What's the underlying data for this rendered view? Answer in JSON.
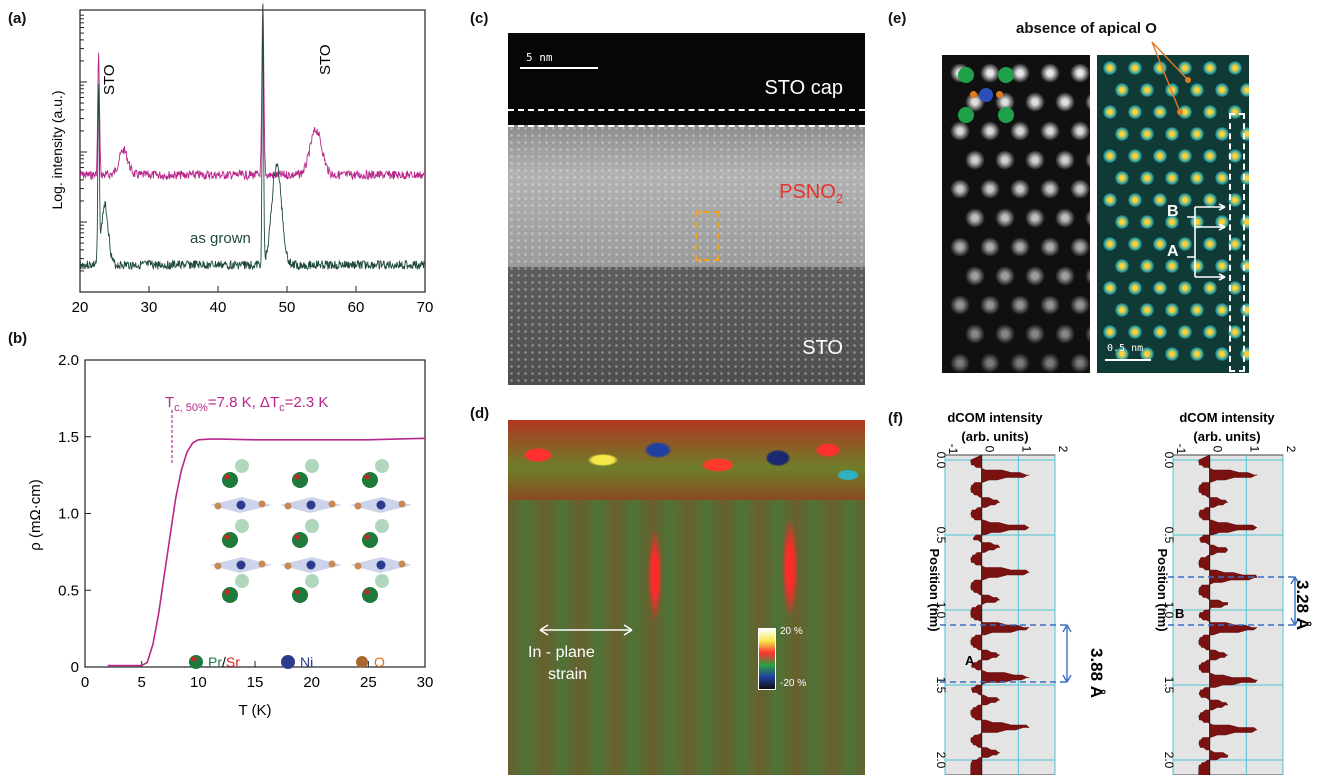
{
  "panel_labels": [
    "(a)",
    "(b)",
    "(c)",
    "(d)",
    "(e)",
    "(f)"
  ],
  "panel_a": {
    "ylabel": "Log. intensity (a.u.)",
    "xticks": [
      "20",
      "30",
      "40",
      "50",
      "60",
      "70"
    ],
    "sto_labels": [
      "STO",
      "STO"
    ],
    "as_grown_label": "as grown",
    "colors": {
      "treated": "#b8288c",
      "as_grown": "#1f4a3c"
    }
  },
  "panel_b": {
    "ylabel": "ρ (mΩ·cm)",
    "xlabel": "T (K)",
    "xticks": [
      "0",
      "5",
      "10",
      "15",
      "20",
      "25",
      "30"
    ],
    "yticks": [
      "0",
      "0.5",
      "1.0",
      "1.5",
      "2.0"
    ],
    "tc_annotation": "T_c, 50%=7.8 K, ΔT_c=2.3 K",
    "tc_main": "T",
    "tc_sub": "c, 50%",
    "tc_rest": "=7.8 K, ΔT",
    "tc_sub2": "c",
    "tc_end": "=2.3 K",
    "legend": {
      "pr": "Pr",
      "slash": "/",
      "sr": "Sr",
      "ni": "Ni",
      "o": "O"
    },
    "color": "#b8288c"
  },
  "panel_c": {
    "scalebar": "5 nm",
    "sto_cap": "STO cap",
    "film": "PSNO",
    "film_sub": "2",
    "substrate": "STO"
  },
  "panel_d": {
    "arrow_label_1": "In - plane",
    "arrow_label_2": "strain",
    "scale_max": "20 %",
    "scale_min": "-20 %"
  },
  "panel_e": {
    "title": "absence of apical O",
    "label_b": "B",
    "label_a": "A",
    "scalebar": "0.5 nm"
  },
  "panel_f": {
    "left": {
      "title_1": "dCOM intensity",
      "title_2": "(arb. units)",
      "xticks": [
        "-1",
        "0",
        "1",
        "2"
      ],
      "ylabel": "Position (nm)",
      "yticks": [
        "0.0",
        "0.5",
        "1.0",
        "1.5",
        "2.0"
      ],
      "label": "A",
      "distance": "3.88 Å"
    },
    "right": {
      "title_1": "dCOM intensity",
      "title_2": "(arb. units)",
      "xticks": [
        "-1",
        "0",
        "1",
        "2"
      ],
      "ylabel": "Position (nm)",
      "yticks": [
        "0.0",
        "0.5",
        "1.0",
        "1.5",
        "2.0"
      ],
      "label": "B",
      "distance": "3.28 Å"
    }
  },
  "chart_data": [
    {
      "type": "line",
      "panel": "(a)",
      "title": "",
      "xlabel": "",
      "ylabel": "Log. intensity (a.u.)",
      "xlim": [
        20,
        70
      ],
      "yscale": "log",
      "series": [
        {
          "name": "",
          "peaks_2theta": [
            22.7,
            26.3,
            46.5,
            54.2
          ]
        },
        {
          "name": "as grown",
          "peaks_2theta": [
            22.7,
            23.6,
            46.5,
            48.5
          ]
        }
      ],
      "annotations": [
        "STO",
        "STO"
      ]
    },
    {
      "type": "line",
      "panel": "(b)",
      "xlabel": "T (K)",
      "ylabel": "ρ (mΩ·cm)",
      "xlim": [
        0,
        30
      ],
      "ylim": [
        0,
        2.0
      ],
      "series": [
        {
          "name": "",
          "x": [
            2,
            5,
            5.5,
            6,
            6.5,
            7,
            7.5,
            8,
            8.5,
            9,
            9.5,
            10,
            11,
            12,
            15,
            20,
            25,
            30
          ],
          "y": [
            0.01,
            0.01,
            0.03,
            0.15,
            0.35,
            0.6,
            0.85,
            1.1,
            1.28,
            1.4,
            1.46,
            1.48,
            1.485,
            1.485,
            1.48,
            1.48,
            1.48,
            1.49
          ]
        }
      ],
      "annotations": [
        "T_c, 50%=7.8 K, ΔT_c=2.3 K"
      ]
    },
    {
      "type": "bar",
      "panel": "(f) left",
      "xlabel": "Position (nm)",
      "ylabel": "dCOM intensity (arb. units)",
      "xlim": [
        0,
        2.1
      ],
      "ylim": [
        -1,
        2
      ],
      "peak_positions_nm": [
        0.1,
        0.28,
        0.45,
        0.58,
        0.75,
        0.93,
        1.12,
        1.3,
        1.45,
        1.6,
        1.78,
        1.95
      ]
    },
    {
      "type": "bar",
      "panel": "(f) right",
      "xlabel": "Position (nm)",
      "ylabel": "dCOM intensity (arb. units)",
      "xlim": [
        0,
        2.1
      ],
      "ylim": [
        -1,
        2
      ],
      "peak_positions_nm": [
        0.1,
        0.28,
        0.45,
        0.6,
        0.78,
        0.96,
        1.12,
        1.3,
        1.47,
        1.63,
        1.8,
        1.97
      ]
    }
  ]
}
